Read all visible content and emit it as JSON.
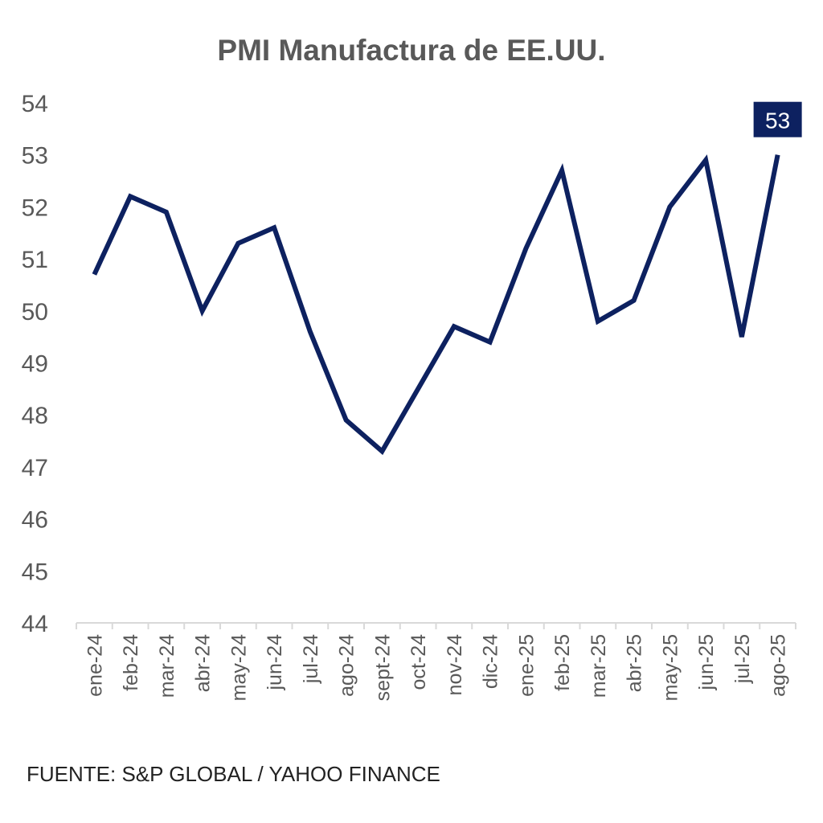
{
  "chart_data": {
    "type": "line",
    "title": "PMI Manufactura de EE.UU.",
    "source": "FUENTE: S&P GLOBAL / YAHOO FINANCE",
    "categories": [
      "ene-24",
      "feb-24",
      "mar-24",
      "abr-24",
      "may-24",
      "jun-24",
      "jul-24",
      "ago-24",
      "sept-24",
      "oct-24",
      "nov-24",
      "dic-24",
      "ene-25",
      "feb-25",
      "mar-25",
      "abr-25",
      "may-25",
      "jun-25",
      "jul-25",
      "ago-25"
    ],
    "values": [
      50.7,
      52.2,
      51.9,
      50.0,
      51.3,
      51.6,
      49.6,
      47.9,
      47.3,
      48.5,
      49.7,
      49.4,
      51.2,
      52.7,
      49.8,
      50.2,
      52.0,
      52.9,
      49.5,
      53.0
    ],
    "ylim": [
      44,
      54
    ],
    "yticks": [
      44,
      45,
      46,
      47,
      48,
      49,
      50,
      51,
      52,
      53,
      54
    ],
    "grid": false,
    "legend": "none",
    "data_label": {
      "category": "ago-25",
      "text": "53"
    },
    "colors": {
      "line": "#0d2160",
      "label_bg": "#0d2160",
      "text": "#595959"
    }
  }
}
